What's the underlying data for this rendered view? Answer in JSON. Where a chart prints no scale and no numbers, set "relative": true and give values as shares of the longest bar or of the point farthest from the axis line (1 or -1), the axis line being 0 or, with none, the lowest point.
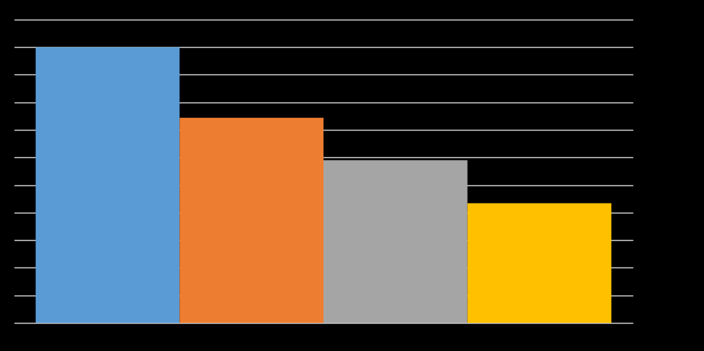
{
  "chart_data": {
    "type": "bar",
    "relative": true,
    "categories": [
      null,
      null,
      null,
      null
    ],
    "values": [
      1,
      0.744,
      0.59,
      0.434
    ],
    "colors": [
      "#5b9bd5",
      "#ed7d31",
      "#a5a5a5",
      "#ffc000"
    ],
    "grid": "y"
  }
}
